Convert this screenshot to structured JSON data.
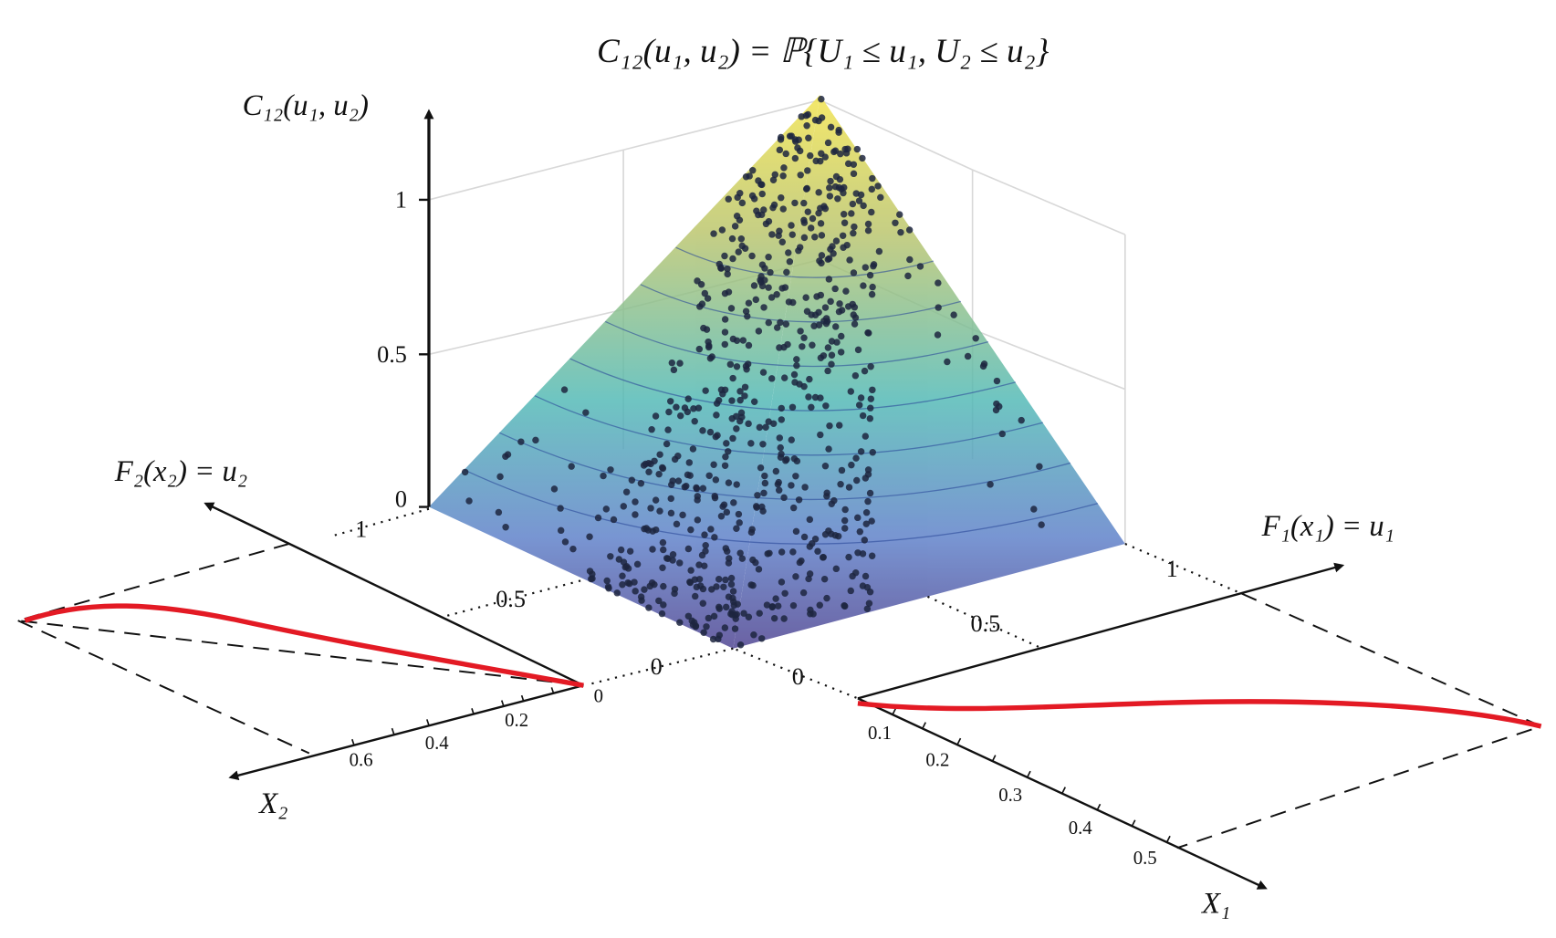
{
  "title": "C₁₂(u₁, u₂) = ℙ{U₁ ≤ u₁, U₂ ≤ u₂}",
  "z_axis": {
    "label": "C₁₂(u₁, u₂)",
    "ticks": [
      "0",
      "0.5",
      "1"
    ]
  },
  "u2_axis": {
    "label": "F₂(x₂) = u₂",
    "ticks": [
      "0",
      "0.5",
      "1"
    ]
  },
  "u1_axis": {
    "label": "F₁(x₁) = u₁",
    "ticks": [
      "0",
      "0.5",
      "1"
    ]
  },
  "x2_axis": {
    "label": "X₂",
    "ticks": [
      "0",
      "0.2",
      "0.4",
      "0.6"
    ]
  },
  "x1_axis": {
    "label": "X₁",
    "ticks": [
      "0.1",
      "0.2",
      "0.3",
      "0.4",
      "0.5"
    ]
  }
}
